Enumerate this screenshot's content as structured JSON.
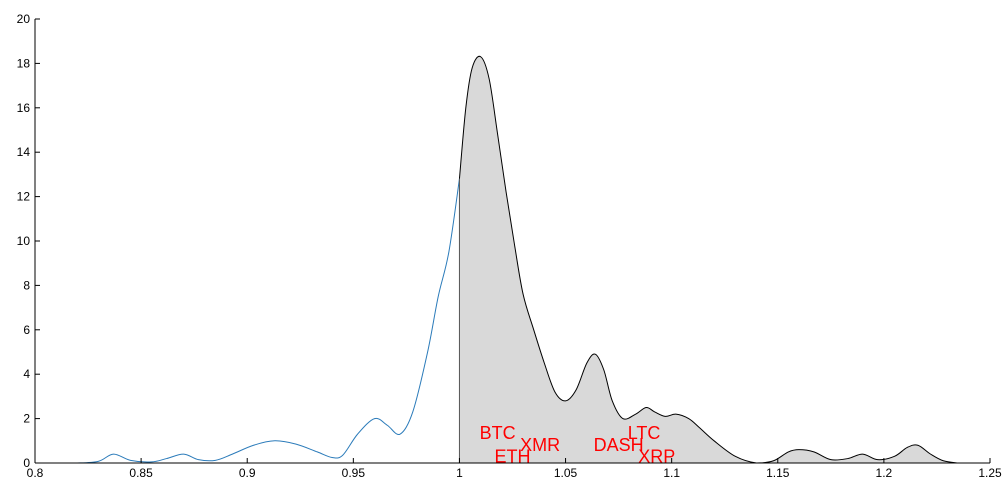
{
  "chart_data": {
    "type": "area",
    "title": "",
    "xlabel": "",
    "ylabel": "",
    "xlim": [
      0.8,
      1.25
    ],
    "ylim": [
      0,
      20
    ],
    "xticks": [
      0.8,
      0.85,
      0.9,
      0.95,
      1,
      1.05,
      1.1,
      1.15,
      1.2,
      1.25
    ],
    "xtick_labels": [
      "0.8",
      "0.85",
      "0.9",
      "0.95",
      "1",
      "1.05",
      "1.1",
      "1.15",
      "1.2",
      "1.25"
    ],
    "yticks": [
      0,
      2,
      4,
      6,
      8,
      10,
      12,
      14,
      16,
      18,
      20
    ],
    "ytick_labels": [
      "0",
      "2",
      "4",
      "6",
      "8",
      "10",
      "12",
      "14",
      "16",
      "18",
      "20"
    ],
    "grid": false,
    "shaded_from_x": 1.0,
    "shade_color": "#d9d9d9",
    "line_color": "#2b7bba",
    "shaded_line_color": "#000000",
    "curve": {
      "x": [
        0.8,
        0.82,
        0.83,
        0.837,
        0.845,
        0.855,
        0.862,
        0.87,
        0.877,
        0.885,
        0.893,
        0.903,
        0.913,
        0.923,
        0.933,
        0.94,
        0.945,
        0.952,
        0.96,
        0.966,
        0.972,
        0.978,
        0.985,
        0.99,
        0.995,
        1.0,
        1.003,
        1.006,
        1.01,
        1.014,
        1.018,
        1.022,
        1.026,
        1.03,
        1.035,
        1.04,
        1.045,
        1.05,
        1.055,
        1.06,
        1.064,
        1.068,
        1.072,
        1.077,
        1.083,
        1.088,
        1.092,
        1.097,
        1.102,
        1.108,
        1.113,
        1.12,
        1.13,
        1.14,
        1.148,
        1.155,
        1.16,
        1.167,
        1.175,
        1.183,
        1.19,
        1.197,
        1.205,
        1.211,
        1.216,
        1.222,
        1.228,
        1.235
      ],
      "y": [
        0,
        0,
        0.08,
        0.4,
        0.12,
        0.05,
        0.2,
        0.4,
        0.15,
        0.12,
        0.4,
        0.8,
        1.0,
        0.85,
        0.5,
        0.25,
        0.35,
        1.3,
        2.0,
        1.7,
        1.3,
        2.3,
        5.0,
        7.5,
        9.5,
        12.8,
        16.0,
        17.8,
        18.3,
        17.3,
        14.8,
        12.2,
        9.8,
        7.6,
        6.0,
        4.5,
        3.2,
        2.8,
        3.3,
        4.5,
        4.9,
        4.2,
        2.8,
        2.0,
        2.2,
        2.5,
        2.3,
        2.1,
        2.2,
        2.0,
        1.6,
        1.0,
        0.3,
        0.0,
        0.1,
        0.5,
        0.6,
        0.5,
        0.15,
        0.2,
        0.4,
        0.15,
        0.3,
        0.7,
        0.8,
        0.4,
        0.1,
        0.0
      ]
    },
    "annotations": [
      {
        "text": "BTC",
        "x": 1.018,
        "y": 1.35,
        "color": "#ff0000"
      },
      {
        "text": "ETH",
        "x": 1.025,
        "y": 0.3,
        "color": "#ff0000"
      },
      {
        "text": "XMR",
        "x": 1.038,
        "y": 0.8,
        "color": "#ff0000"
      },
      {
        "text": "DASH",
        "x": 1.075,
        "y": 0.8,
        "color": "#ff0000"
      },
      {
        "text": "LTC",
        "x": 1.087,
        "y": 1.35,
        "color": "#ff0000"
      },
      {
        "text": "XRP",
        "x": 1.093,
        "y": 0.3,
        "color": "#ff0000"
      }
    ]
  }
}
